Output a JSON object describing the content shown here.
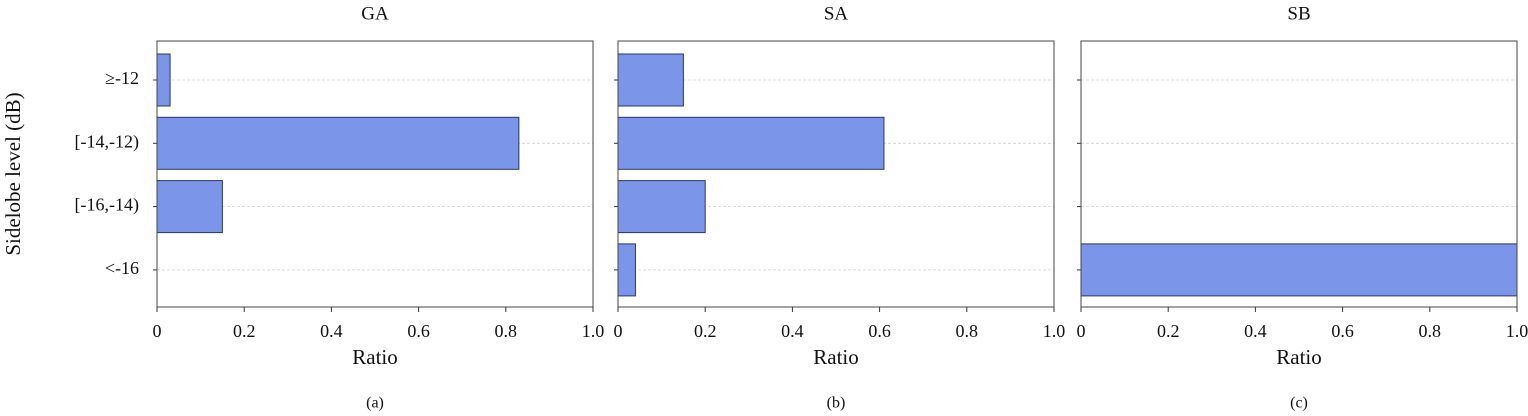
{
  "chart_data": [
    {
      "type": "barh",
      "title": "GA",
      "subtitle": "(a)",
      "x_label": "Ratio",
      "y_label": "Sidelobe level (dB)",
      "categories": [
        "≥-12",
        "[-14,-12)",
        "[-16,-14)",
        "<-16"
      ],
      "values": [
        0.03,
        0.83,
        0.15,
        0
      ],
      "color": "#7b96e8",
      "xlim": [
        0,
        1
      ],
      "xticks": [
        0,
        0.2,
        0.4,
        0.6,
        0.8,
        {
          "value": 1,
          "label": "1.0"
        }
      ],
      "grid": true
    },
    {
      "type": "barh",
      "title": "SA",
      "subtitle": "(b)",
      "x_label": "Ratio",
      "values": [
        0.15,
        0.61,
        0.2,
        0.04
      ],
      "color": "#7b96e8",
      "xlim": [
        0,
        1
      ],
      "xticks": [
        0,
        0.2,
        0.4,
        0.6,
        0.8,
        {
          "value": 1,
          "label": "1.0"
        }
      ],
      "grid": true
    },
    {
      "type": "barh",
      "title": "SB",
      "subtitle": "(c)",
      "x_label": "Ratio",
      "values": [
        0,
        0,
        0,
        1
      ],
      "color": "#7b96e8",
      "xlim": [
        0,
        1
      ],
      "xticks": [
        0,
        0.2,
        0.4,
        0.6,
        0.8,
        {
          "value": 1,
          "label": "1.0"
        }
      ],
      "grid": true
    }
  ]
}
